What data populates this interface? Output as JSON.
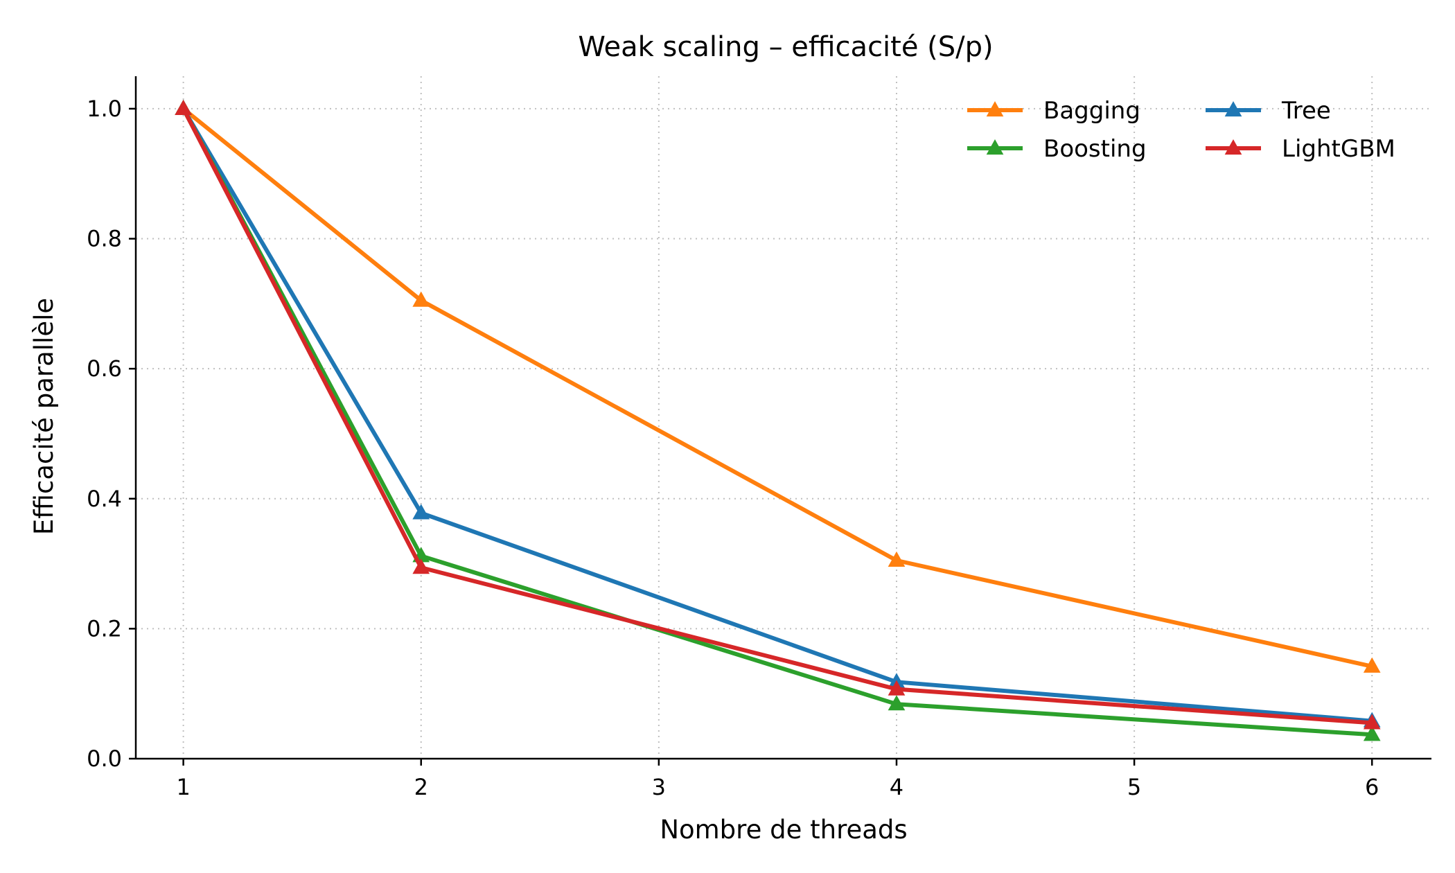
{
  "chart_data": {
    "type": "line",
    "title": "Weak scaling – efficacité (S/p)",
    "xlabel": "Nombre de threads",
    "ylabel": "Efficacité parallèle",
    "xlim": [
      0.8,
      6.25
    ],
    "ylim": [
      0.0,
      1.05
    ],
    "x_ticks": [
      1,
      2,
      3,
      4,
      5,
      6
    ],
    "x_tick_labels": [
      "1",
      "2",
      "3",
      "4",
      "5",
      "6"
    ],
    "y_ticks": [
      0.0,
      0.2,
      0.4,
      0.6,
      0.8,
      1.0
    ],
    "y_tick_labels": [
      "0.0",
      "0.2",
      "0.4",
      "0.6",
      "0.8",
      "1.0"
    ],
    "grid": true,
    "legend_position": "top-right",
    "marker": "triangle-up",
    "x": [
      1,
      2,
      4,
      6
    ],
    "series": [
      {
        "name": "Bagging",
        "color": "#ff7f0e",
        "values": [
          1.0,
          0.705,
          0.305,
          0.142
        ]
      },
      {
        "name": "Tree",
        "color": "#1f77b4",
        "values": [
          1.0,
          0.378,
          0.118,
          0.058
        ]
      },
      {
        "name": "Boosting",
        "color": "#2ca02c",
        "values": [
          1.0,
          0.312,
          0.084,
          0.037
        ]
      },
      {
        "name": "LightGBM",
        "color": "#d62728",
        "values": [
          1.0,
          0.294,
          0.107,
          0.055
        ]
      }
    ]
  }
}
